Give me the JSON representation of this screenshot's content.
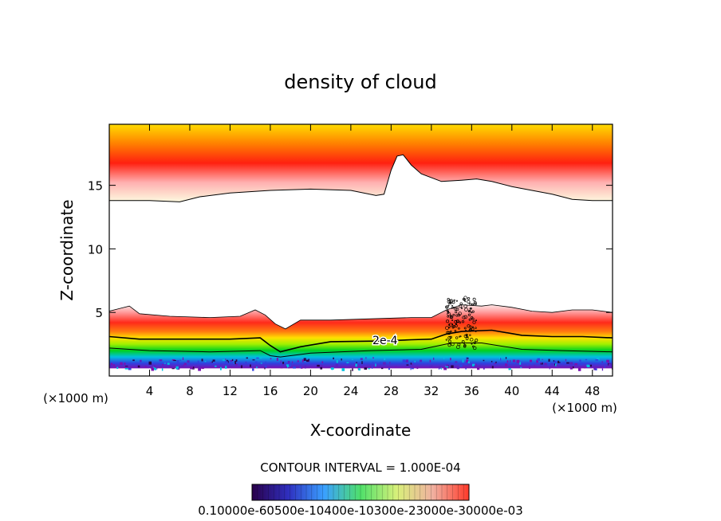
{
  "chart_data": {
    "type": "contour",
    "title": "density of cloud",
    "xlabel": "X-coordinate",
    "ylabel": "Z-coordinate",
    "x_unit_label": "(×1000 m)",
    "xlim": [
      0,
      50
    ],
    "ylim": [
      0,
      19.8
    ],
    "x_ticks": [
      4,
      8,
      12,
      16,
      20,
      24,
      28,
      32,
      36,
      40,
      44,
      48
    ],
    "y_ticks": [
      5,
      10,
      15
    ],
    "contour_interval_label": "CONTOUR INTERVAL = 1.000E-04",
    "contour_labels": [
      {
        "text": "2e-4",
        "x": 27.4,
        "z": 2.7
      }
    ],
    "colorbar_label": "0.10000e-60500e-10400e-10300e-23000e-30000e-03",
    "colorbar_stops": [
      "#2a004a",
      "#2f2fbf",
      "#3aa0ff",
      "#4fe06a",
      "#d8f07a",
      "#f0b0a0",
      "#ff3a2a"
    ],
    "upper_layer": {
      "top_z": 19.8,
      "base_z": [
        [
          0,
          13.8
        ],
        [
          4,
          13.8
        ],
        [
          7,
          13.7
        ],
        [
          9,
          14.1
        ],
        [
          12,
          14.4
        ],
        [
          16,
          14.6
        ],
        [
          20,
          14.7
        ],
        [
          24,
          14.6
        ],
        [
          26.5,
          14.2
        ],
        [
          27.3,
          14.3
        ],
        [
          28,
          16.2
        ],
        [
          28.6,
          17.3
        ],
        [
          29.2,
          17.4
        ],
        [
          30,
          16.6
        ],
        [
          31,
          15.9
        ],
        [
          33,
          15.3
        ],
        [
          35,
          15.4
        ],
        [
          36.5,
          15.5
        ],
        [
          38,
          15.3
        ],
        [
          40,
          14.9
        ],
        [
          42,
          14.6
        ],
        [
          44,
          14.3
        ],
        [
          46,
          13.9
        ],
        [
          48,
          13.8
        ],
        [
          50,
          13.8
        ]
      ],
      "colors": [
        "#fdfae0",
        "#ffb0b0",
        "#ff2010",
        "#ff8000",
        "#ffdc00"
      ]
    },
    "lower_layer": {
      "top_z": [
        [
          0,
          5.1
        ],
        [
          1,
          5.3
        ],
        [
          2,
          5.5
        ],
        [
          3,
          4.9
        ],
        [
          6,
          4.7
        ],
        [
          10,
          4.6
        ],
        [
          13,
          4.7
        ],
        [
          14.5,
          5.2
        ],
        [
          15.5,
          4.8
        ],
        [
          16.5,
          4.1
        ],
        [
          17.5,
          3.7
        ],
        [
          19,
          4.4
        ],
        [
          22,
          4.4
        ],
        [
          26,
          4.5
        ],
        [
          30,
          4.6
        ],
        [
          32,
          4.6
        ],
        [
          33.5,
          5.2
        ],
        [
          35,
          5.6
        ],
        [
          37,
          5.5
        ],
        [
          38,
          5.6
        ],
        [
          40,
          5.4
        ],
        [
          42,
          5.1
        ],
        [
          44,
          5.0
        ],
        [
          46,
          5.2
        ],
        [
          48,
          5.2
        ],
        [
          50,
          5.0
        ]
      ],
      "contour_2e4": [
        [
          0,
          3.1
        ],
        [
          3,
          2.9
        ],
        [
          8,
          2.9
        ],
        [
          12,
          2.9
        ],
        [
          15,
          3.0
        ],
        [
          16,
          2.4
        ],
        [
          17,
          1.9
        ],
        [
          19,
          2.3
        ],
        [
          22,
          2.7
        ],
        [
          27,
          2.75
        ],
        [
          30,
          2.85
        ],
        [
          32,
          2.9
        ],
        [
          33.5,
          3.3
        ],
        [
          35,
          3.5
        ],
        [
          38,
          3.6
        ],
        [
          41,
          3.2
        ],
        [
          44,
          3.1
        ],
        [
          47,
          3.1
        ],
        [
          50,
          3.0
        ]
      ],
      "contour_low": [
        [
          0,
          2.2
        ],
        [
          4,
          2.0
        ],
        [
          10,
          1.9
        ],
        [
          15,
          2.0
        ],
        [
          16,
          1.6
        ],
        [
          17,
          1.5
        ],
        [
          20,
          1.8
        ],
        [
          26,
          2.0
        ],
        [
          31,
          2.1
        ],
        [
          34,
          2.6
        ],
        [
          37,
          2.6
        ],
        [
          41,
          2.1
        ],
        [
          45,
          2.0
        ],
        [
          50,
          1.9
        ]
      ],
      "base_z": 0.6
    }
  }
}
